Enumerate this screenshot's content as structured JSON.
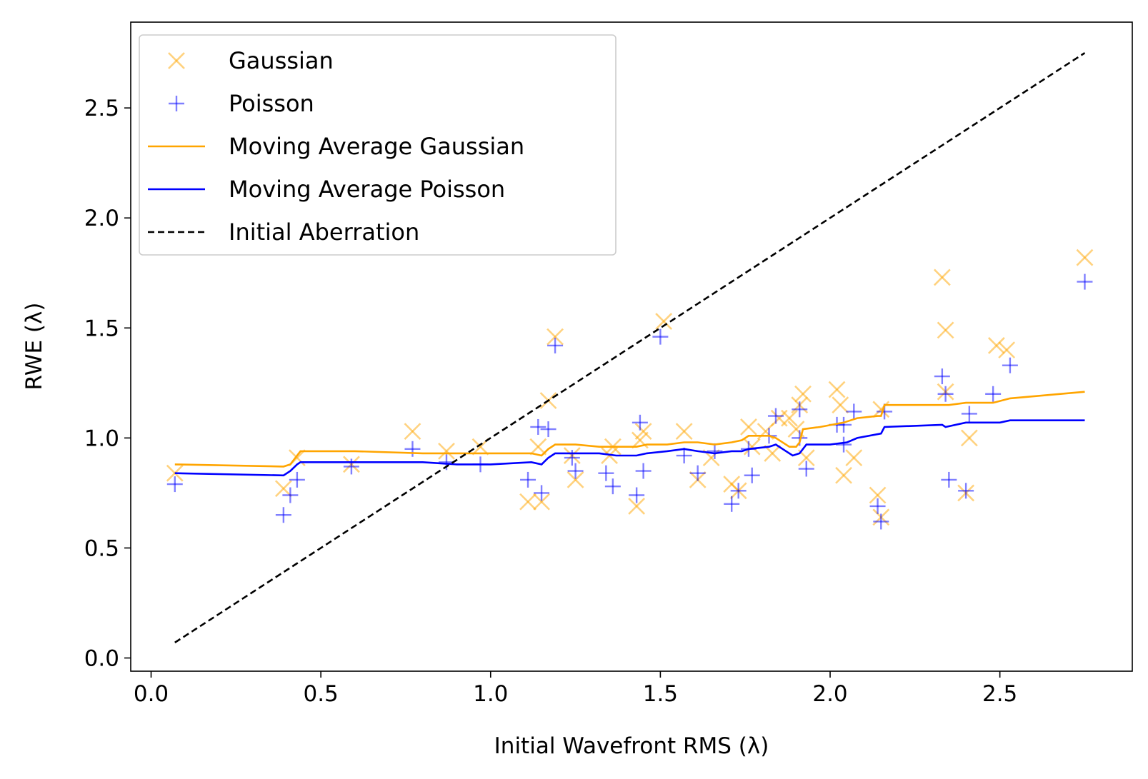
{
  "chart_data": {
    "type": "scatter",
    "xlabel": "Initial Wavefront RMS (λ)",
    "ylabel": "RWE (λ)",
    "xlim": [
      -0.06,
      2.89
    ],
    "ylim": [
      -0.06,
      2.89
    ],
    "xticks": [
      0.0,
      0.5,
      1.0,
      1.5,
      2.0,
      2.5
    ],
    "yticks": [
      0.0,
      0.5,
      1.0,
      1.5,
      2.0,
      2.5
    ],
    "xtick_labels": [
      "0.0",
      "0.5",
      "1.0",
      "1.5",
      "2.0",
      "2.5"
    ],
    "ytick_labels": [
      "0.0",
      "0.5",
      "1.0",
      "1.5",
      "2.0",
      "2.5"
    ],
    "grid": false,
    "legend_position": "top-left",
    "series": [
      {
        "name": "Gaussian",
        "kind": "scatter",
        "marker": "x",
        "color": "#ffa500",
        "points": [
          [
            0.07,
            0.84
          ],
          [
            0.39,
            0.77
          ],
          [
            0.43,
            0.91
          ],
          [
            0.59,
            0.88
          ],
          [
            0.77,
            1.03
          ],
          [
            0.87,
            0.94
          ],
          [
            0.97,
            0.96
          ],
          [
            1.11,
            0.71
          ],
          [
            1.14,
            0.96
          ],
          [
            1.15,
            0.71
          ],
          [
            1.17,
            1.17
          ],
          [
            1.19,
            1.46
          ],
          [
            1.24,
            0.92
          ],
          [
            1.25,
            0.81
          ],
          [
            1.35,
            0.92
          ],
          [
            1.36,
            0.96
          ],
          [
            1.43,
            0.69
          ],
          [
            1.44,
            0.99
          ],
          [
            1.45,
            1.03
          ],
          [
            1.51,
            1.53
          ],
          [
            1.57,
            1.03
          ],
          [
            1.61,
            0.81
          ],
          [
            1.65,
            0.91
          ],
          [
            1.71,
            0.79
          ],
          [
            1.73,
            0.76
          ],
          [
            1.76,
            1.05
          ],
          [
            1.77,
            0.96
          ],
          [
            1.81,
            1.03
          ],
          [
            1.83,
            0.93
          ],
          [
            1.85,
            1.09
          ],
          [
            1.88,
            1.09
          ],
          [
            1.9,
            1.04
          ],
          [
            1.91,
            1.15
          ],
          [
            1.92,
            1.2
          ],
          [
            1.93,
            0.91
          ],
          [
            2.02,
            1.22
          ],
          [
            2.03,
            1.15
          ],
          [
            2.04,
            0.83
          ],
          [
            2.07,
            0.91
          ],
          [
            2.14,
            0.74
          ],
          [
            2.15,
            0.64
          ],
          [
            2.15,
            1.13
          ],
          [
            2.33,
            1.73
          ],
          [
            2.34,
            1.49
          ],
          [
            2.34,
            1.21
          ],
          [
            2.4,
            0.75
          ],
          [
            2.41,
            1.0
          ],
          [
            2.49,
            1.42
          ],
          [
            2.52,
            1.4
          ],
          [
            2.75,
            1.82
          ]
        ]
      },
      {
        "name": "Poisson",
        "kind": "scatter",
        "marker": "+",
        "color": "#0000ff",
        "points": [
          [
            0.07,
            0.79
          ],
          [
            0.39,
            0.65
          ],
          [
            0.41,
            0.74
          ],
          [
            0.43,
            0.81
          ],
          [
            0.59,
            0.87
          ],
          [
            0.77,
            0.95
          ],
          [
            0.87,
            0.89
          ],
          [
            0.97,
            0.88
          ],
          [
            1.11,
            0.81
          ],
          [
            1.14,
            1.05
          ],
          [
            1.15,
            0.75
          ],
          [
            1.17,
            1.04
          ],
          [
            1.19,
            1.42
          ],
          [
            1.24,
            0.91
          ],
          [
            1.25,
            0.85
          ],
          [
            1.34,
            0.84
          ],
          [
            1.36,
            0.78
          ],
          [
            1.43,
            0.74
          ],
          [
            1.44,
            1.07
          ],
          [
            1.45,
            0.85
          ],
          [
            1.5,
            1.46
          ],
          [
            1.57,
            0.92
          ],
          [
            1.61,
            0.84
          ],
          [
            1.66,
            0.94
          ],
          [
            1.71,
            0.7
          ],
          [
            1.73,
            0.76
          ],
          [
            1.76,
            0.95
          ],
          [
            1.77,
            0.83
          ],
          [
            1.82,
            1.01
          ],
          [
            1.84,
            1.1
          ],
          [
            1.91,
            1.13
          ],
          [
            1.91,
            1.0
          ],
          [
            1.93,
            0.86
          ],
          [
            2.02,
            1.06
          ],
          [
            2.04,
            1.06
          ],
          [
            2.04,
            0.97
          ],
          [
            2.07,
            1.12
          ],
          [
            2.14,
            0.69
          ],
          [
            2.15,
            0.62
          ],
          [
            2.16,
            1.12
          ],
          [
            2.33,
            1.28
          ],
          [
            2.34,
            1.2
          ],
          [
            2.35,
            0.81
          ],
          [
            2.4,
            0.76
          ],
          [
            2.41,
            1.11
          ],
          [
            2.48,
            1.2
          ],
          [
            2.53,
            1.33
          ],
          [
            2.75,
            1.71
          ]
        ]
      },
      {
        "name": "Moving Average Gaussian",
        "kind": "line",
        "color": "#ffa500",
        "points": [
          [
            0.07,
            0.88
          ],
          [
            0.39,
            0.87
          ],
          [
            0.41,
            0.88
          ],
          [
            0.43,
            0.92
          ],
          [
            0.44,
            0.94
          ],
          [
            0.6,
            0.94
          ],
          [
            0.8,
            0.93
          ],
          [
            0.9,
            0.93
          ],
          [
            1.0,
            0.93
          ],
          [
            1.12,
            0.93
          ],
          [
            1.15,
            0.92
          ],
          [
            1.17,
            0.95
          ],
          [
            1.19,
            0.97
          ],
          [
            1.25,
            0.97
          ],
          [
            1.32,
            0.96
          ],
          [
            1.37,
            0.96
          ],
          [
            1.43,
            0.96
          ],
          [
            1.46,
            0.97
          ],
          [
            1.52,
            0.97
          ],
          [
            1.57,
            0.98
          ],
          [
            1.61,
            0.98
          ],
          [
            1.66,
            0.97
          ],
          [
            1.71,
            0.98
          ],
          [
            1.74,
            0.99
          ],
          [
            1.76,
            1.01
          ],
          [
            1.8,
            1.01
          ],
          [
            1.82,
            1.01
          ],
          [
            1.84,
            1.0
          ],
          [
            1.88,
            0.96
          ],
          [
            1.9,
            0.96
          ],
          [
            1.91,
            0.98
          ],
          [
            1.92,
            1.04
          ],
          [
            1.97,
            1.05
          ],
          [
            2.04,
            1.07
          ],
          [
            2.08,
            1.09
          ],
          [
            2.14,
            1.1
          ],
          [
            2.15,
            1.1
          ],
          [
            2.16,
            1.15
          ],
          [
            2.33,
            1.15
          ],
          [
            2.35,
            1.15
          ],
          [
            2.4,
            1.16
          ],
          [
            2.48,
            1.16
          ],
          [
            2.53,
            1.18
          ],
          [
            2.75,
            1.21
          ]
        ]
      },
      {
        "name": "Moving Average Poisson",
        "kind": "line",
        "color": "#0000ff",
        "points": [
          [
            0.07,
            0.84
          ],
          [
            0.39,
            0.83
          ],
          [
            0.41,
            0.85
          ],
          [
            0.43,
            0.88
          ],
          [
            0.44,
            0.89
          ],
          [
            0.6,
            0.89
          ],
          [
            0.8,
            0.89
          ],
          [
            0.9,
            0.88
          ],
          [
            1.0,
            0.88
          ],
          [
            1.12,
            0.89
          ],
          [
            1.15,
            0.88
          ],
          [
            1.17,
            0.91
          ],
          [
            1.19,
            0.93
          ],
          [
            1.25,
            0.93
          ],
          [
            1.32,
            0.93
          ],
          [
            1.37,
            0.92
          ],
          [
            1.43,
            0.92
          ],
          [
            1.46,
            0.93
          ],
          [
            1.52,
            0.94
          ],
          [
            1.57,
            0.95
          ],
          [
            1.61,
            0.94
          ],
          [
            1.66,
            0.93
          ],
          [
            1.71,
            0.94
          ],
          [
            1.74,
            0.94
          ],
          [
            1.76,
            0.95
          ],
          [
            1.82,
            0.96
          ],
          [
            1.84,
            0.97
          ],
          [
            1.86,
            0.95
          ],
          [
            1.89,
            0.92
          ],
          [
            1.91,
            0.93
          ],
          [
            1.93,
            0.97
          ],
          [
            2.0,
            0.97
          ],
          [
            2.05,
            0.98
          ],
          [
            2.08,
            1.0
          ],
          [
            2.15,
            1.02
          ],
          [
            2.16,
            1.05
          ],
          [
            2.33,
            1.06
          ],
          [
            2.34,
            1.05
          ],
          [
            2.4,
            1.07
          ],
          [
            2.5,
            1.07
          ],
          [
            2.53,
            1.08
          ],
          [
            2.75,
            1.08
          ]
        ]
      },
      {
        "name": "Initial Aberration",
        "kind": "line",
        "dashed": true,
        "color": "#000000",
        "points": [
          [
            0.07,
            0.07
          ],
          [
            2.75,
            2.75
          ]
        ]
      }
    ]
  }
}
